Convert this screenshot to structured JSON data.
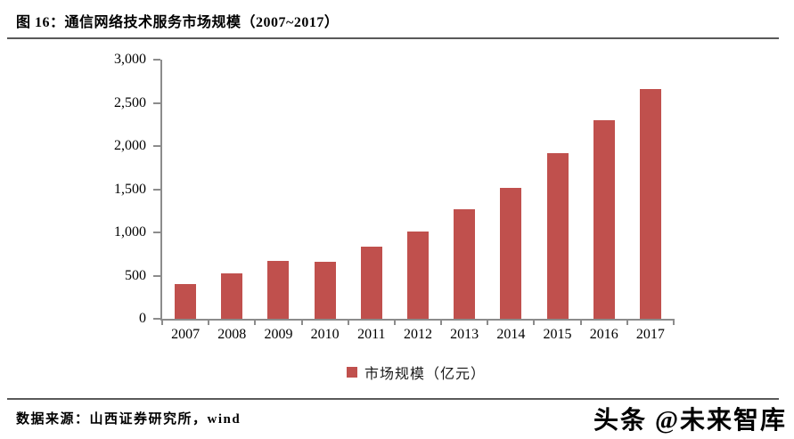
{
  "figure": {
    "title": "图 16：通信网络技术服务市场规模（2007~2017）",
    "source_note": "数据来源：山西证券研究所，wind",
    "watermark": "头条 @未来智库"
  },
  "chart_data": {
    "type": "bar",
    "title": "通信网络技术服务市场规模（2007~2017）",
    "categories": [
      "2007",
      "2008",
      "2009",
      "2010",
      "2011",
      "2012",
      "2013",
      "2014",
      "2015",
      "2016",
      "2017"
    ],
    "values": [
      400,
      525,
      670,
      660,
      840,
      1015,
      1265,
      1520,
      1915,
      2295,
      2665
    ],
    "legend": [
      "市场规模（亿元）"
    ],
    "legend_position": "bottom",
    "xlabel": "",
    "ylabel": "",
    "ylim": [
      0,
      3000
    ],
    "ytick_interval": 500,
    "ytick_labels": [
      "0",
      "500",
      "1,000",
      "1,500",
      "2,000",
      "2,500",
      "3,000"
    ],
    "grid": false,
    "colors": {
      "bar": "#c0504d",
      "axis": "#8c8c8c",
      "text": "#000000",
      "divider": "#595959"
    }
  }
}
